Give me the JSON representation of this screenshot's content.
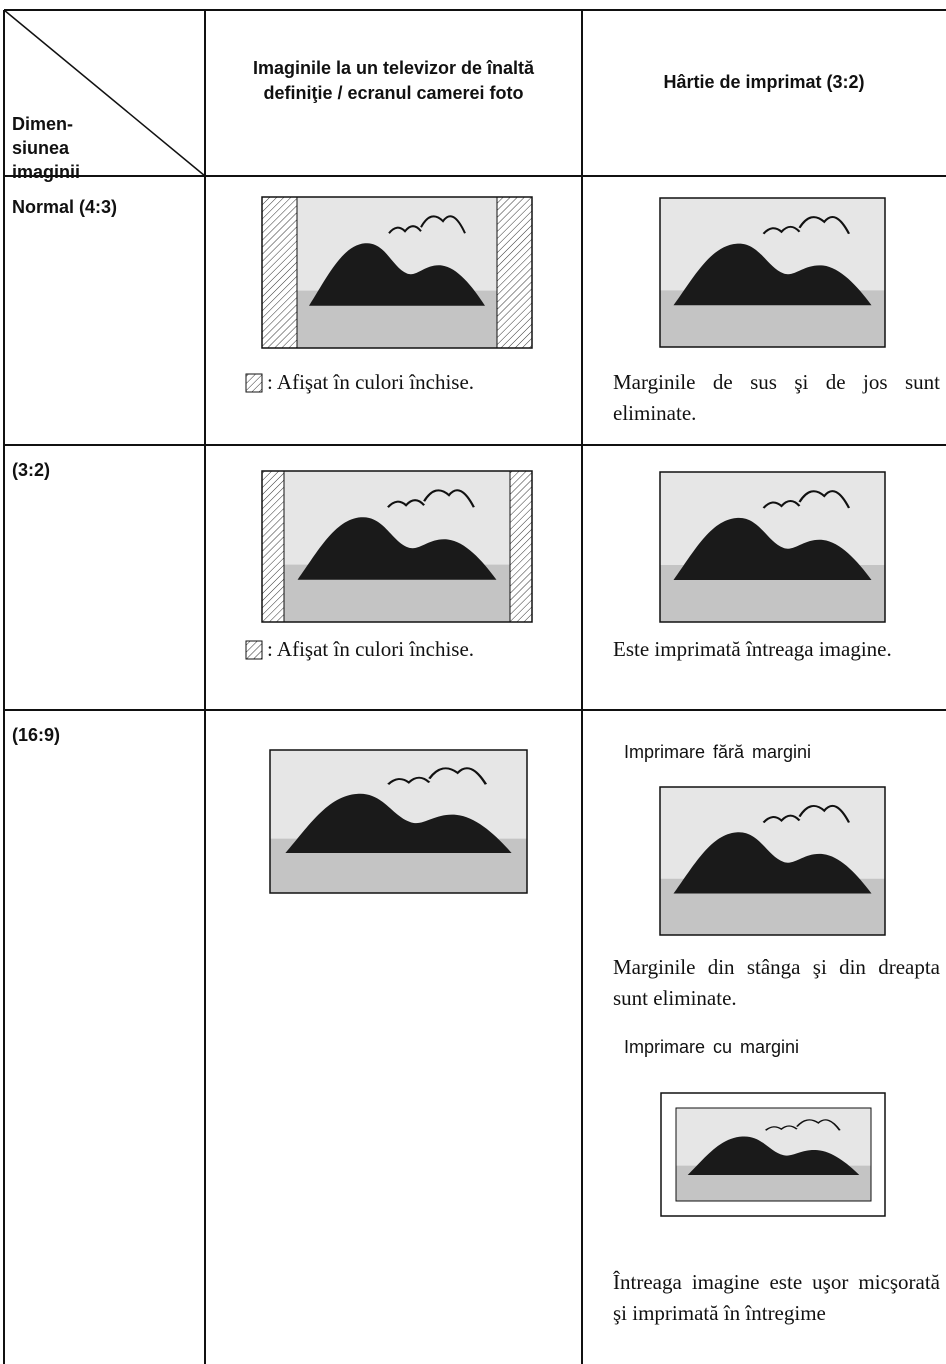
{
  "header": {
    "corner": [
      "Dimen-",
      "siunea",
      "imaginii"
    ],
    "columns": [
      [
        "Imaginile la un televizor de înaltă",
        "definiţie / ecranul camerei foto"
      ],
      "Hârtie de imprimat (3:2)"
    ]
  },
  "rows": [
    {
      "label": "Normal (4:3)",
      "screen_note": ": Afişat în culori închise.",
      "print_note": "Marginile de sus şi de jos sunt eliminate."
    },
    {
      "label": "(3:2)",
      "screen_note": ": Afişat în culori închise.",
      "print_note": "Este imprimată întreaga imagine."
    },
    {
      "label": "(16:9)",
      "print_sections": [
        {
          "heading": "Imprimare fără margini",
          "note": "Marginile din stânga şi din dreapta sunt eliminate."
        },
        {
          "heading": "Imprimare cu margini",
          "note": "Întreaga imagine este uşor micşorată şi imprimată în întregime"
        }
      ]
    }
  ]
}
